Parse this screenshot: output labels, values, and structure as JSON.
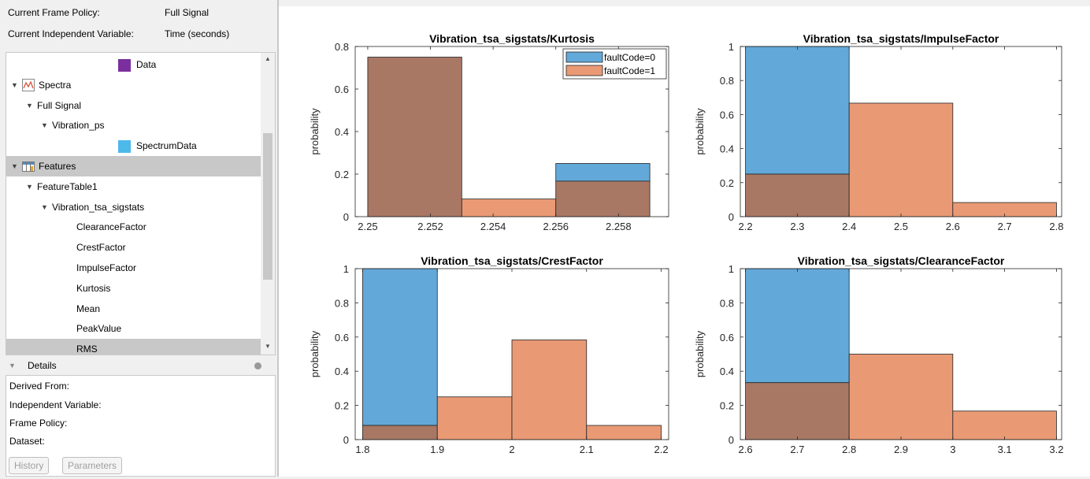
{
  "header": {
    "frame_policy_label": "Current Frame Policy:",
    "frame_policy_value": "Full Signal",
    "indep_var_label": "Current Independent Variable:",
    "indep_var_value": "Time (seconds)"
  },
  "tree": {
    "items": [
      {
        "label": "Data",
        "indent": 3,
        "expander": "",
        "icon": "purple-square-icon",
        "color": "#7b2f9e"
      },
      {
        "label": "Spectra",
        "indent": 0,
        "expander": "▼",
        "icon": "spectrum-icon"
      },
      {
        "label": "Full Signal",
        "indent": 1,
        "expander": "▼",
        "icon": ""
      },
      {
        "label": "Vibration_ps",
        "indent": 2,
        "expander": "▼",
        "icon": ""
      },
      {
        "label": "SpectrumData",
        "indent": 3,
        "expander": "",
        "icon": "blue-square-icon",
        "color": "#4db8ea"
      },
      {
        "label": "Features",
        "indent": 0,
        "expander": "▼",
        "icon": "feature-table-icon",
        "selected": true
      },
      {
        "label": "FeatureTable1",
        "indent": 1,
        "expander": "▼",
        "icon": ""
      },
      {
        "label": "Vibration_tsa_sigstats",
        "indent": 2,
        "expander": "▼",
        "icon": ""
      },
      {
        "label": "ClearanceFactor",
        "indent": 3,
        "expander": "",
        "icon": ""
      },
      {
        "label": "CrestFactor",
        "indent": 3,
        "expander": "",
        "icon": ""
      },
      {
        "label": "ImpulseFactor",
        "indent": 3,
        "expander": "",
        "icon": ""
      },
      {
        "label": "Kurtosis",
        "indent": 3,
        "expander": "",
        "icon": ""
      },
      {
        "label": "Mean",
        "indent": 3,
        "expander": "",
        "icon": ""
      },
      {
        "label": "PeakValue",
        "indent": 3,
        "expander": "",
        "icon": ""
      },
      {
        "label": "RMS",
        "indent": 3,
        "expander": "",
        "icon": "",
        "selected": true
      }
    ]
  },
  "details": {
    "title": "Details",
    "derived_from": "Derived From:",
    "independent_variable": "Independent Variable:",
    "frame_policy": "Frame Policy:",
    "dataset": "Dataset:",
    "history_button": "History",
    "parameters_button": "Parameters"
  },
  "colors": {
    "fault0": "#62a9d9",
    "fault1": "#e99a75",
    "overlap": "#a97865"
  },
  "chart_data": [
    {
      "type": "bar",
      "title": "Vibration_tsa_sigstats/Kurtosis",
      "ylabel": "probability",
      "xlim": [
        2.2496,
        2.2596
      ],
      "ylim": [
        0,
        0.8
      ],
      "xticks": [
        2.25,
        2.252,
        2.254,
        2.256,
        2.258
      ],
      "xticklabels": [
        "2.25",
        "2.252",
        "2.254",
        "2.256",
        "2.258"
      ],
      "yticks": [
        0,
        0.2,
        0.4,
        0.6,
        0.8
      ],
      "yticklabels": [
        "0",
        "0.2",
        "0.4",
        "0.6",
        "0.8"
      ],
      "edges": [
        2.25,
        2.253,
        2.256,
        2.259
      ],
      "series": [
        {
          "name": "faultCode=0",
          "values": [
            0.75,
            0,
            0.25
          ]
        },
        {
          "name": "faultCode=1",
          "values": [
            0.75,
            0.083,
            0.167
          ]
        }
      ],
      "legend": "top-right"
    },
    {
      "type": "bar",
      "title": "Vibration_tsa_sigstats/ImpulseFactor",
      "ylabel": "probability",
      "xlim": [
        2.19,
        2.81
      ],
      "ylim": [
        0,
        1
      ],
      "xticks": [
        2.2,
        2.3,
        2.4,
        2.5,
        2.6,
        2.7,
        2.8
      ],
      "xticklabels": [
        "2.2",
        "2.3",
        "2.4",
        "2.5",
        "2.6",
        "2.7",
        "2.8"
      ],
      "yticks": [
        0,
        0.2,
        0.4,
        0.6,
        0.8,
        1
      ],
      "yticklabels": [
        "0",
        "0.2",
        "0.4",
        "0.6",
        "0.8",
        "1"
      ],
      "edges": [
        2.2,
        2.4,
        2.6,
        2.8
      ],
      "series": [
        {
          "name": "faultCode=0",
          "values": [
            1,
            0,
            0
          ]
        },
        {
          "name": "faultCode=1",
          "values": [
            0.25,
            0.667,
            0.083
          ]
        }
      ]
    },
    {
      "type": "bar",
      "title": "Vibration_tsa_sigstats/CrestFactor",
      "ylabel": "probability",
      "xlim": [
        1.79,
        2.21
      ],
      "ylim": [
        0,
        1
      ],
      "xticks": [
        1.8,
        1.9,
        2,
        2.1,
        2.2
      ],
      "xticklabels": [
        "1.8",
        "1.9",
        "2",
        "2.1",
        "2.2"
      ],
      "yticks": [
        0,
        0.2,
        0.4,
        0.6,
        0.8,
        1
      ],
      "yticklabels": [
        "0",
        "0.2",
        "0.4",
        "0.6",
        "0.8",
        "1"
      ],
      "edges": [
        1.8,
        1.9,
        2.0,
        2.1,
        2.2
      ],
      "series": [
        {
          "name": "faultCode=0",
          "values": [
            1,
            0,
            0,
            0
          ]
        },
        {
          "name": "faultCode=1",
          "values": [
            0.083,
            0.25,
            0.583,
            0.083
          ]
        }
      ]
    },
    {
      "type": "bar",
      "title": "Vibration_tsa_sigstats/ClearanceFactor",
      "ylabel": "probability",
      "xlim": [
        2.59,
        3.21
      ],
      "ylim": [
        0,
        1
      ],
      "xticks": [
        2.6,
        2.7,
        2.8,
        2.9,
        3,
        3.1,
        3.2
      ],
      "xticklabels": [
        "2.6",
        "2.7",
        "2.8",
        "2.9",
        "3",
        "3.1",
        "3.2"
      ],
      "yticks": [
        0,
        0.2,
        0.4,
        0.6,
        0.8,
        1
      ],
      "yticklabels": [
        "0",
        "0.2",
        "0.4",
        "0.6",
        "0.8",
        "1"
      ],
      "edges": [
        2.6,
        2.8,
        3.0,
        3.2
      ],
      "series": [
        {
          "name": "faultCode=0",
          "values": [
            1,
            0,
            0
          ]
        },
        {
          "name": "faultCode=1",
          "values": [
            0.333,
            0.5,
            0.167
          ]
        }
      ]
    }
  ]
}
